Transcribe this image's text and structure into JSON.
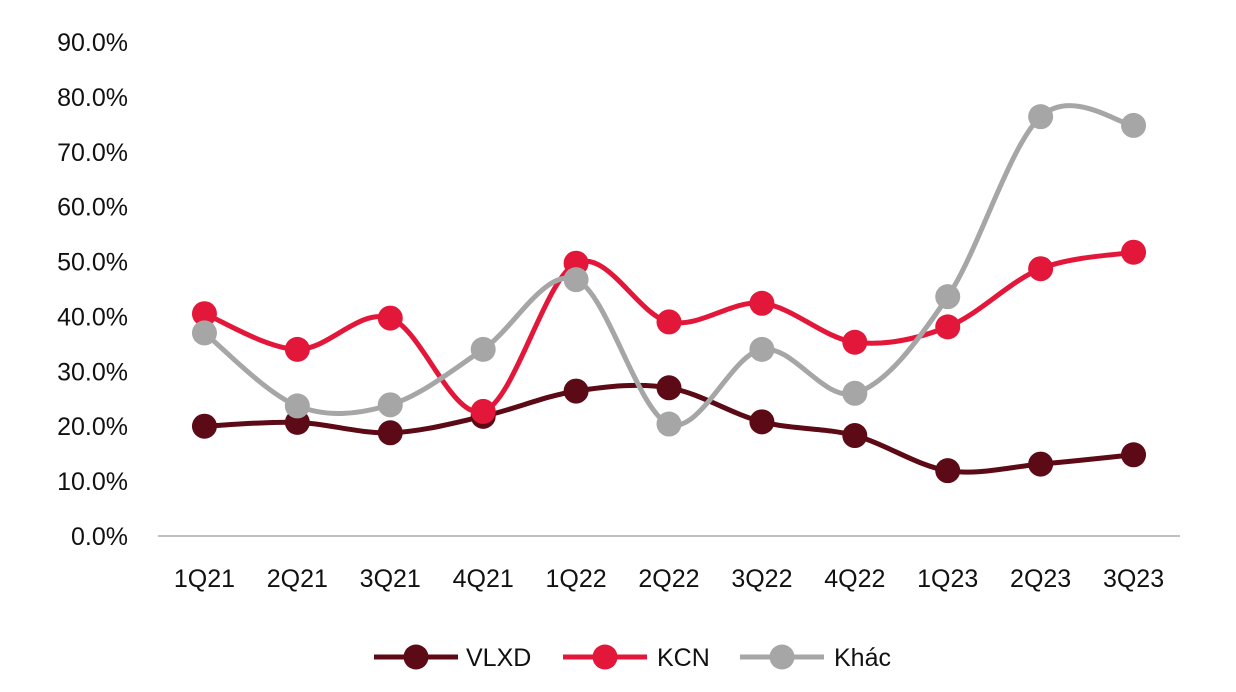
{
  "chart_data": {
    "type": "line",
    "title": "",
    "xlabel": "",
    "ylabel": "",
    "categories": [
      "1Q21",
      "2Q21",
      "3Q21",
      "4Q21",
      "1Q22",
      "2Q22",
      "3Q22",
      "4Q22",
      "1Q23",
      "2Q23",
      "3Q23"
    ],
    "ylim": [
      0,
      90
    ],
    "yticks": [
      "0.0%",
      "10.0%",
      "20.0%",
      "30.0%",
      "40.0%",
      "50.0%",
      "60.0%",
      "70.0%",
      "80.0%",
      "90.0%"
    ],
    "grid": false,
    "smooth": true,
    "legend_position": "bottom",
    "series": [
      {
        "name": "VLXD",
        "color": "#5c0a16",
        "values": [
          20.0,
          20.7,
          18.8,
          21.8,
          26.4,
          27.0,
          20.8,
          18.3,
          11.9,
          13.1,
          14.8
        ]
      },
      {
        "name": "KCN",
        "color": "#e3173a",
        "values": [
          40.5,
          34.0,
          39.7,
          22.7,
          49.7,
          39.0,
          42.4,
          35.3,
          38.1,
          48.7,
          51.7
        ]
      },
      {
        "name": "Khác",
        "color": "#a6a6a6",
        "values": [
          37.0,
          23.7,
          23.9,
          34.0,
          46.7,
          20.4,
          34.0,
          26.0,
          43.6,
          76.4,
          74.8
        ]
      }
    ]
  }
}
